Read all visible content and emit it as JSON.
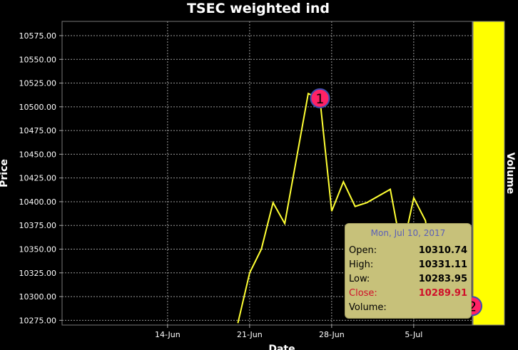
{
  "chart_data": {
    "type": "line",
    "title": "TSEC weighted ind",
    "xlabel": "Date",
    "ylabel": "Price",
    "right_panel_label": "Volume",
    "ylim": [
      10270,
      10590
    ],
    "y_ticks": [
      10275.0,
      10300.0,
      10325.0,
      10350.0,
      10375.0,
      10400.0,
      10425.0,
      10450.0,
      10475.0,
      10500.0,
      10525.0,
      10550.0,
      10575.0
    ],
    "y_tick_labels": [
      "10275.00",
      "10300.00",
      "10325.00",
      "10350.00",
      "10375.00",
      "10400.00",
      "10425.00",
      "10450.00",
      "10475.00",
      "10500.00",
      "10525.00",
      "10550.00",
      "10575.00"
    ],
    "xlim": [
      "2017-06-05",
      "2017-07-10"
    ],
    "x_ticks": [
      "2017-06-14",
      "2017-06-21",
      "2017-06-28",
      "2017-07-05"
    ],
    "x_tick_labels": [
      "14-Jun",
      "21-Jun",
      "28-Jun",
      "5-Jul"
    ],
    "grid": true,
    "colors": {
      "line": "#ffff33",
      "background": "#000000",
      "volume_panel": "#ffff00",
      "marker": "#ff2266",
      "grid": "#9a9a9a"
    },
    "series": [
      {
        "x": [
          "2017-06-20",
          "2017-06-21",
          "2017-06-22",
          "2017-06-23",
          "2017-06-24",
          "2017-06-26",
          "2017-06-27",
          "2017-06-28",
          "2017-06-29",
          "2017-06-30",
          "2017-07-01",
          "2017-07-03",
          "2017-07-04",
          "2017-07-05",
          "2017-07-06",
          "2017-07-07",
          "2017-07-10"
        ],
        "values": [
          10272,
          10325,
          10350,
          10399,
          10377,
          10514,
          10508,
          10390,
          10421,
          10395,
          10399,
          10413,
          10347,
          10404,
          10380,
          10297,
          10292
        ]
      }
    ],
    "markers": [
      {
        "label": "1",
        "x": "2017-06-27",
        "y": 10509
      },
      {
        "label": "2",
        "x": "2017-07-10",
        "y": 10290
      }
    ]
  },
  "tooltip": {
    "date": "Mon, Jul 10, 2017",
    "rows": [
      {
        "label": "Open:",
        "value": "10310.74"
      },
      {
        "label": "High:",
        "value": "10331.11"
      },
      {
        "label": "Low:",
        "value": "10283.95"
      },
      {
        "label": "Close:",
        "value": "10289.91"
      },
      {
        "label": "Volume:",
        "value": ""
      }
    ]
  }
}
